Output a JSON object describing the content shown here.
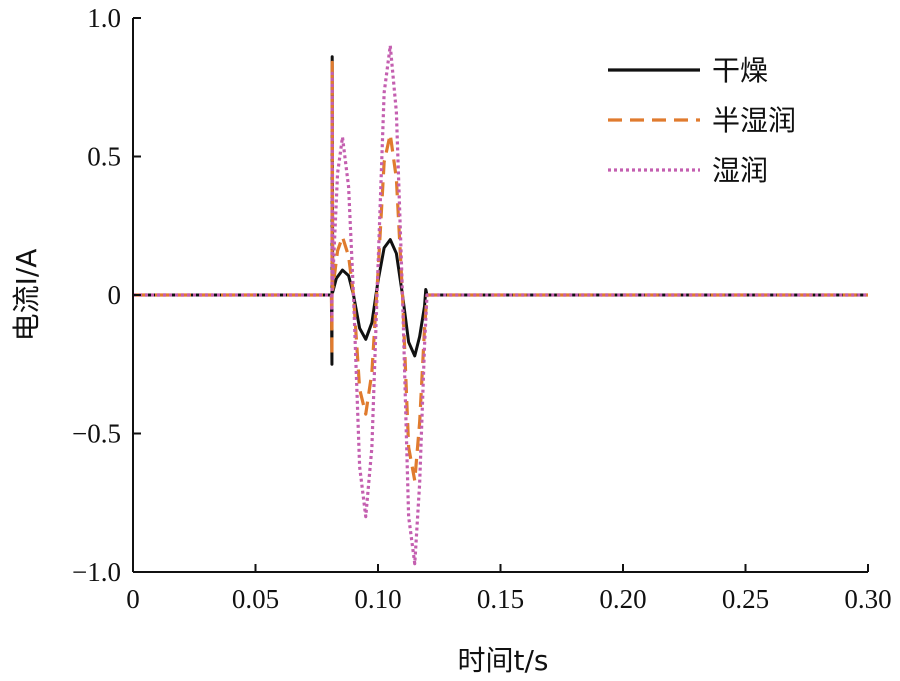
{
  "chart_data": {
    "type": "line",
    "title": "",
    "xlabel": "时间t/s",
    "ylabel": "电流I/A",
    "xlim": [
      0,
      0.3
    ],
    "ylim": [
      -1.0,
      1.0
    ],
    "xticks": [
      "0",
      "0.05",
      "0.10",
      "0.15",
      "0.20",
      "0.25",
      "0.30"
    ],
    "yticks": [
      "1.0",
      "0.5",
      "0",
      "−0.5",
      "−1.0"
    ],
    "grid": false,
    "legend_position": "top-right",
    "series": [
      {
        "name": "干燥",
        "color": "#111111",
        "style": "solid",
        "points": [
          [
            0,
            0
          ],
          [
            0.081,
            0
          ],
          [
            0.0812,
            -0.25
          ],
          [
            0.0813,
            0.86
          ],
          [
            0.0815,
            0.01
          ],
          [
            0.083,
            0.06
          ],
          [
            0.0855,
            0.09
          ],
          [
            0.088,
            0.07
          ],
          [
            0.09,
            0.0
          ],
          [
            0.0925,
            -0.12
          ],
          [
            0.095,
            -0.16
          ],
          [
            0.0975,
            -0.1
          ],
          [
            0.1,
            0.05
          ],
          [
            0.1025,
            0.17
          ],
          [
            0.105,
            0.2
          ],
          [
            0.1075,
            0.15
          ],
          [
            0.11,
            0.0
          ],
          [
            0.1125,
            -0.17
          ],
          [
            0.115,
            -0.22
          ],
          [
            0.117,
            -0.15
          ],
          [
            0.119,
            -0.04
          ],
          [
            0.1195,
            0.02
          ],
          [
            0.12,
            0
          ],
          [
            0.3,
            0
          ]
        ]
      },
      {
        "name": "半湿润",
        "color": "#e07b2e",
        "style": "dashed",
        "points": [
          [
            0,
            0
          ],
          [
            0.081,
            0
          ],
          [
            0.0812,
            -0.22
          ],
          [
            0.0813,
            0.84
          ],
          [
            0.0815,
            0.02
          ],
          [
            0.0835,
            0.16
          ],
          [
            0.0855,
            0.21
          ],
          [
            0.088,
            0.14
          ],
          [
            0.09,
            0.0
          ],
          [
            0.0925,
            -0.34
          ],
          [
            0.095,
            -0.43
          ],
          [
            0.0975,
            -0.28
          ],
          [
            0.1,
            0.08
          ],
          [
            0.1025,
            0.48
          ],
          [
            0.105,
            0.58
          ],
          [
            0.1075,
            0.42
          ],
          [
            0.11,
            0.0
          ],
          [
            0.1125,
            -0.55
          ],
          [
            0.115,
            -0.67
          ],
          [
            0.117,
            -0.46
          ],
          [
            0.119,
            -0.12
          ],
          [
            0.12,
            0
          ],
          [
            0.3,
            0
          ]
        ]
      },
      {
        "name": "湿润",
        "color": "#c45fb0",
        "style": "dotted",
        "points": [
          [
            0,
            0
          ],
          [
            0.081,
            0
          ],
          [
            0.0812,
            -0.1
          ],
          [
            0.0813,
            0.8
          ],
          [
            0.0815,
            0.05
          ],
          [
            0.0835,
            0.44
          ],
          [
            0.0855,
            0.57
          ],
          [
            0.088,
            0.39
          ],
          [
            0.09,
            0.0
          ],
          [
            0.0925,
            -0.62
          ],
          [
            0.095,
            -0.8
          ],
          [
            0.0975,
            -0.55
          ],
          [
            0.1,
            0.1
          ],
          [
            0.1025,
            0.73
          ],
          [
            0.105,
            0.9
          ],
          [
            0.1075,
            0.66
          ],
          [
            0.11,
            0.0
          ],
          [
            0.1125,
            -0.8
          ],
          [
            0.115,
            -0.97
          ],
          [
            0.117,
            -0.68
          ],
          [
            0.119,
            -0.18
          ],
          [
            0.12,
            0
          ],
          [
            0.3,
            0
          ]
        ]
      }
    ]
  }
}
